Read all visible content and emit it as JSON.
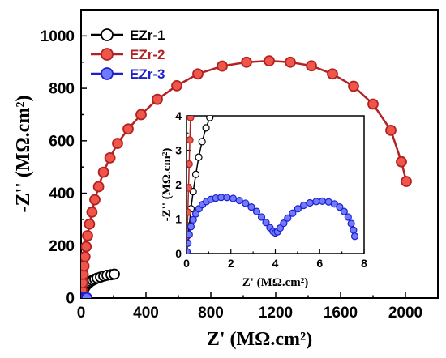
{
  "chart_data": [
    {
      "type": "scatter",
      "title": "",
      "xlabel": "Z' (MΩ.cm²)",
      "ylabel": "-Z'' (MΩ.cm²)",
      "xlim": [
        0,
        2200
      ],
      "ylim": [
        0,
        1100
      ],
      "xticks": [
        0,
        400,
        800,
        1200,
        1600,
        2000
      ],
      "yticks": [
        0,
        200,
        400,
        600,
        800,
        1000
      ],
      "xtick_labels": [
        "0",
        "400",
        "800",
        "1200",
        "1600",
        "2000"
      ],
      "ytick_labels": [
        "0",
        "200",
        "400",
        "600",
        "800",
        "1000"
      ],
      "grid": false,
      "legend_position": "top-left",
      "series": [
        {
          "name": "EZr-1",
          "color": "#000000",
          "fill": "#ffffff",
          "x": [
            2,
            5,
            8,
            12,
            16,
            20,
            26,
            32,
            40,
            50,
            60,
            72,
            85,
            100,
            120,
            140,
            160,
            185,
            205
          ],
          "y": [
            2,
            12,
            20,
            27,
            33,
            38,
            44,
            49,
            54,
            59,
            64,
            68,
            72,
            76,
            80,
            84,
            87,
            89,
            91
          ]
        },
        {
          "name": "EZr-2",
          "color": "#b22222",
          "fill": "#f0554a",
          "x": [
            2,
            5,
            9,
            13,
            18,
            24,
            31,
            40,
            52,
            67,
            85,
            108,
            138,
            178,
            225,
            290,
            370,
            470,
            590,
            720,
            870,
            1020,
            1160,
            1290,
            1420,
            1550,
            1680,
            1800,
            1910,
            1975,
            2005
          ],
          "y": [
            5,
            30,
            58,
            90,
            122,
            158,
            196,
            238,
            282,
            328,
            375,
            425,
            480,
            535,
            590,
            645,
            700,
            758,
            810,
            855,
            885,
            900,
            905,
            900,
            886,
            855,
            808,
            740,
            640,
            520,
            445
          ]
        },
        {
          "name": "EZr-3",
          "color": "#1f1fcc",
          "fill": "#6f7bff",
          "x": [
            2,
            5,
            9,
            14,
            20,
            27,
            35
          ],
          "y": [
            1,
            2,
            2,
            2,
            1,
            1,
            1
          ]
        }
      ]
    },
    {
      "type": "scatter",
      "title": "",
      "xlabel": "Z' (MΩ.cm²)",
      "ylabel": "-Z'' (MΩ.cm²)",
      "xlim": [
        0,
        8
      ],
      "ylim": [
        0,
        4
      ],
      "xticks": [
        0,
        2,
        4,
        6,
        8
      ],
      "yticks": [
        0,
        1,
        2,
        3,
        4
      ],
      "xtick_labels": [
        "0",
        "2",
        "4",
        "6",
        "8"
      ],
      "ytick_labels": [
        "0",
        "1",
        "2",
        "3",
        "4"
      ],
      "grid": false,
      "series": [
        {
          "name": "EZr-1",
          "color": "#000000",
          "fill": "#ffffff",
          "x": [
            0.05,
            0.12,
            0.2,
            0.3,
            0.42,
            0.55,
            0.7,
            0.88,
            1.05
          ],
          "y": [
            0.3,
            0.8,
            1.3,
            1.8,
            2.3,
            2.8,
            3.25,
            3.65,
            3.95
          ]
        },
        {
          "name": "EZr-2",
          "color": "#b22222",
          "fill": "#f0554a",
          "x": [
            0.03,
            0.06,
            0.09,
            0.12,
            0.15,
            0.18
          ],
          "y": [
            0.5,
            1.2,
            1.9,
            2.6,
            3.3,
            3.95
          ]
        },
        {
          "name": "EZr-3",
          "color": "#1f1fcc",
          "fill": "#6f7bff",
          "x": [
            0.02,
            0.06,
            0.12,
            0.2,
            0.3,
            0.42,
            0.56,
            0.72,
            0.9,
            1.1,
            1.32,
            1.56,
            1.82,
            2.1,
            2.38,
            2.66,
            2.92,
            3.16,
            3.38,
            3.58,
            3.76,
            3.9,
            4.0,
            4.1,
            4.22,
            4.38,
            4.56,
            4.78,
            5.02,
            5.28,
            5.56,
            5.84,
            6.12,
            6.4,
            6.66,
            6.9,
            7.1,
            7.28,
            7.42,
            7.52,
            7.58
          ],
          "y": [
            0.05,
            0.3,
            0.55,
            0.78,
            0.98,
            1.15,
            1.3,
            1.42,
            1.51,
            1.57,
            1.61,
            1.63,
            1.63,
            1.6,
            1.54,
            1.46,
            1.35,
            1.22,
            1.06,
            0.9,
            0.75,
            0.64,
            0.6,
            0.63,
            0.74,
            0.88,
            1.03,
            1.17,
            1.3,
            1.4,
            1.47,
            1.51,
            1.52,
            1.5,
            1.44,
            1.35,
            1.22,
            1.06,
            0.87,
            0.68,
            0.5
          ]
        }
      ]
    }
  ]
}
